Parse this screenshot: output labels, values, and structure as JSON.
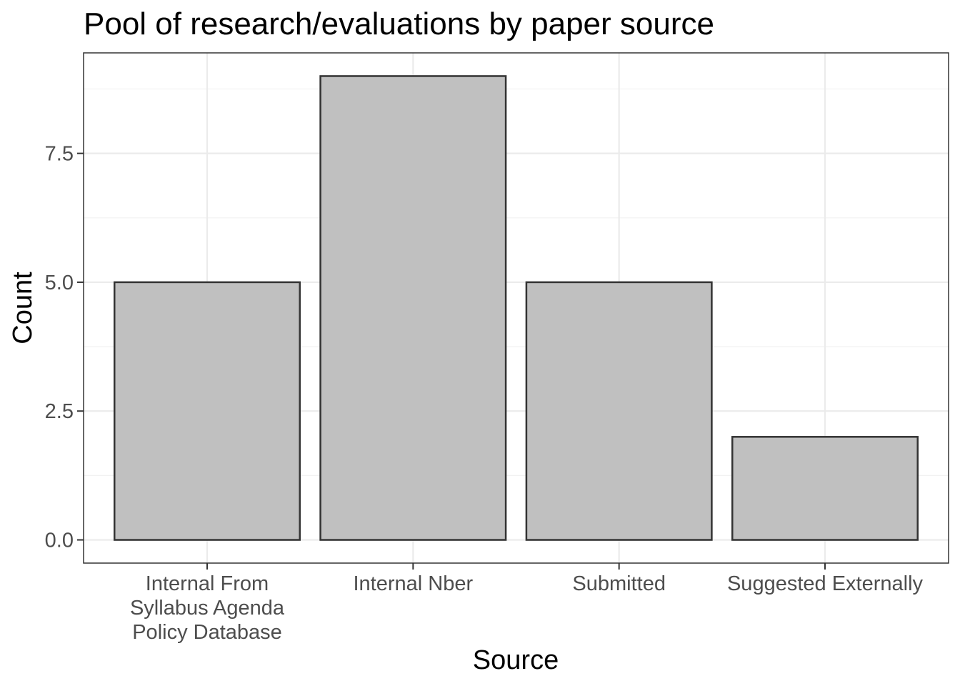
{
  "chart_data": {
    "type": "bar",
    "title": "Pool of research/evaluations by paper source",
    "xlabel": "Source",
    "ylabel": "Count",
    "categories": [
      [
        "Internal From",
        "Syllabus Agenda",
        "Policy Database"
      ],
      [
        "Internal Nber"
      ],
      [
        "Submitted"
      ],
      [
        "Suggested Externally"
      ]
    ],
    "values": [
      5,
      9,
      5,
      2
    ],
    "ylim": [
      -0.45,
      9.45
    ],
    "y_ticks": [
      0,
      2.5,
      5,
      7.5
    ],
    "y_tick_labels": [
      "0.0",
      "2.5",
      "5.0",
      "7.5"
    ],
    "grid": true,
    "legend": "none",
    "colors": {
      "bar_fill": "#c0c0c0",
      "bar_stroke": "#333333",
      "grid_major": "#ebebeb",
      "grid_minor": "#f2f2f2",
      "panel_border": "#333333"
    }
  }
}
